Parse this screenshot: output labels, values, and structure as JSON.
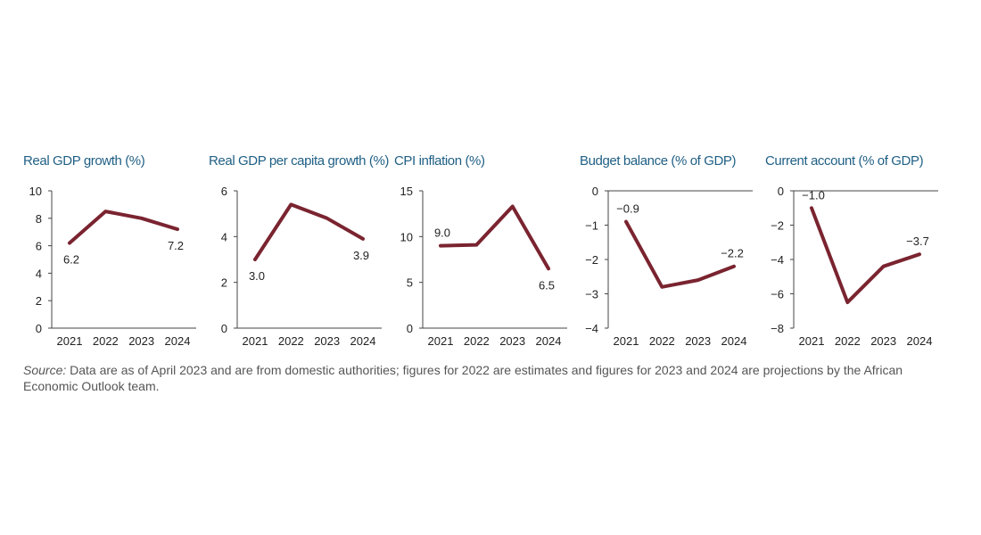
{
  "chart_data": [
    {
      "type": "line",
      "title": "Real GDP growth (%)",
      "categories": [
        "2021",
        "2022",
        "2023",
        "2024"
      ],
      "values": [
        6.2,
        8.5,
        8.0,
        7.2
      ],
      "ylim": [
        0,
        10
      ],
      "yticks": [
        "0",
        "2",
        "4",
        "6",
        "8",
        "10"
      ],
      "labels": [
        {
          "index": 0,
          "text": "6.2",
          "pos": "below"
        },
        {
          "index": 3,
          "text": "7.2",
          "pos": "below"
        }
      ]
    },
    {
      "type": "line",
      "title": "Real GDP per capita growth (%)",
      "categories": [
        "2021",
        "2022",
        "2023",
        "2024"
      ],
      "values": [
        3.0,
        5.4,
        4.8,
        3.9
      ],
      "ylim": [
        0,
        6
      ],
      "yticks": [
        "0",
        "2",
        "4",
        "6"
      ],
      "labels": [
        {
          "index": 0,
          "text": "3.0",
          "pos": "below"
        },
        {
          "index": 3,
          "text": "3.9",
          "pos": "below"
        }
      ]
    },
    {
      "type": "line",
      "title": "CPI inflation (%)",
      "categories": [
        "2021",
        "2022",
        "2023",
        "2024"
      ],
      "values": [
        9.0,
        9.1,
        13.3,
        6.5
      ],
      "ylim": [
        0,
        15
      ],
      "yticks": [
        "0",
        "5",
        "10",
        "15"
      ],
      "labels": [
        {
          "index": 0,
          "text": "9.0",
          "pos": "above"
        },
        {
          "index": 3,
          "text": "6.5",
          "pos": "below"
        }
      ]
    },
    {
      "type": "line",
      "title": "Budget balance (% of GDP)",
      "categories": [
        "2021",
        "2022",
        "2023",
        "2024"
      ],
      "values": [
        -0.9,
        -2.8,
        -2.6,
        -2.2
      ],
      "ylim": [
        -4,
        0
      ],
      "yticks": [
        "−4",
        "−3",
        "−2",
        "−1",
        "0"
      ],
      "labels": [
        {
          "index": 0,
          "text": "−0.9",
          "pos": "above"
        },
        {
          "index": 3,
          "text": "−2.2",
          "pos": "above"
        }
      ]
    },
    {
      "type": "line",
      "title": "Current account (% of GDP)",
      "categories": [
        "2021",
        "2022",
        "2023",
        "2024"
      ],
      "values": [
        -1.0,
        -6.5,
        -4.4,
        -3.7
      ],
      "ylim": [
        -8,
        0
      ],
      "yticks": [
        "−8",
        "−6",
        "−4",
        "−2",
        "0"
      ],
      "labels": [
        {
          "index": 0,
          "text": "−1.0",
          "pos": "above"
        },
        {
          "index": 3,
          "text": "−3.7",
          "pos": "above"
        }
      ]
    }
  ],
  "source": {
    "prefix": "Source:",
    "text": " Data are as of April 2023 and are from domestic authorities; figures for 2022 are estimates and figures for 2023 and 2024 are projections by the African Economic Outlook team."
  },
  "colors": {
    "line": "#7a2430",
    "title": "#1f5f85"
  }
}
